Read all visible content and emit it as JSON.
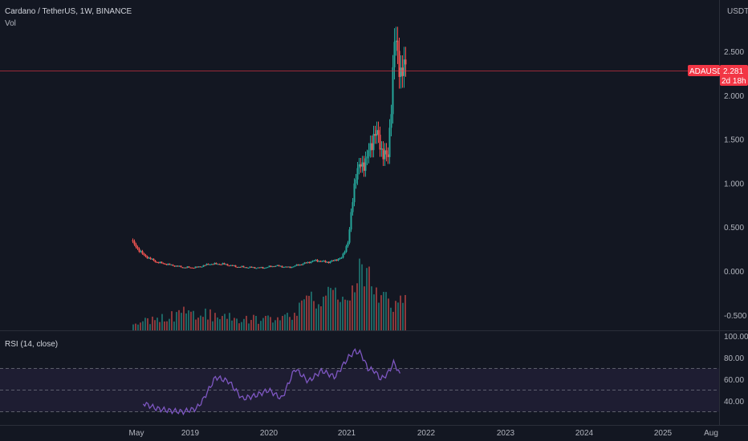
{
  "header": {
    "symbol_line": "Cardano / TetherUS, 1W, BINANCE",
    "volume_label": "Vol",
    "rsi_label": "RSI (14, close)"
  },
  "price_axis": {
    "currency": "USDT",
    "ticks": [
      "2.500",
      "2.000",
      "1.500",
      "1.000",
      "0.500",
      "0.000",
      "-0.500"
    ]
  },
  "last_price": {
    "symbol": "ADAUSDT",
    "value": "2.281",
    "countdown": "2d 18h",
    "color": "#f23645"
  },
  "rsi_axis": {
    "ticks": [
      "100.00",
      "80.00",
      "60.00",
      "40.00"
    ]
  },
  "time_axis": {
    "ticks": [
      "May",
      "2019",
      "2020",
      "2021",
      "2022",
      "2023",
      "2024",
      "2025",
      "Aug"
    ]
  },
  "colors": {
    "up": "#26a69a",
    "down": "#ef5350",
    "rsi_line": "#7e57c2",
    "background": "#131722"
  },
  "chart_data": [
    {
      "type": "candlestick",
      "title": "Cardano / TetherUS, 1W, BINANCE",
      "ylim": [
        -0.6,
        3.0
      ],
      "series": [
        {
          "name": "ADAUSDT",
          "x": [
            "2018-04",
            "2018-06",
            "2018-08",
            "2018-10",
            "2018-12",
            "2019-02",
            "2019-04",
            "2019-06",
            "2019-08",
            "2019-10",
            "2019-12",
            "2020-02",
            "2020-04",
            "2020-06",
            "2020-08",
            "2020-10",
            "2020-12",
            "2021-01",
            "2021-02",
            "2021-03",
            "2021-04",
            "2021-05",
            "2021-06",
            "2021-07",
            "2021-08",
            "2021-09"
          ],
          "close": [
            0.35,
            0.18,
            0.1,
            0.07,
            0.04,
            0.04,
            0.08,
            0.08,
            0.05,
            0.04,
            0.035,
            0.06,
            0.04,
            0.08,
            0.12,
            0.1,
            0.15,
            0.35,
            1.1,
            1.2,
            1.3,
            1.6,
            1.4,
            1.25,
            2.6,
            2.28
          ]
        }
      ]
    },
    {
      "type": "bar",
      "title": "Vol",
      "x": [
        "2018-04",
        "2018-08",
        "2018-12",
        "2019-04",
        "2019-08",
        "2019-12",
        "2020-04",
        "2020-08",
        "2020-12",
        "2021-02",
        "2021-04",
        "2021-06",
        "2021-08"
      ],
      "values": [
        0.5,
        1.0,
        1.6,
        1.3,
        1.1,
        0.9,
        1.3,
        2.6,
        3.2,
        5.5,
        4.3,
        3.0,
        2.6
      ]
    },
    {
      "type": "line",
      "title": "RSI (14, close)",
      "ylim": [
        20,
        100
      ],
      "x": [
        "2018-06",
        "2018-08",
        "2018-10",
        "2018-12",
        "2019-02",
        "2019-03",
        "2019-05",
        "2019-07",
        "2019-09",
        "2019-11",
        "2020-01",
        "2020-03",
        "2020-05",
        "2020-07",
        "2020-09",
        "2020-11",
        "2021-01",
        "2021-02",
        "2021-03",
        "2021-04",
        "2021-05",
        "2021-06",
        "2021-07",
        "2021-08",
        "2021-09"
      ],
      "values": [
        38,
        33,
        31,
        30,
        33,
        40,
        62,
        58,
        42,
        45,
        50,
        42,
        70,
        58,
        68,
        62,
        80,
        86,
        84,
        70,
        68,
        60,
        65,
        76,
        62
      ]
    }
  ]
}
